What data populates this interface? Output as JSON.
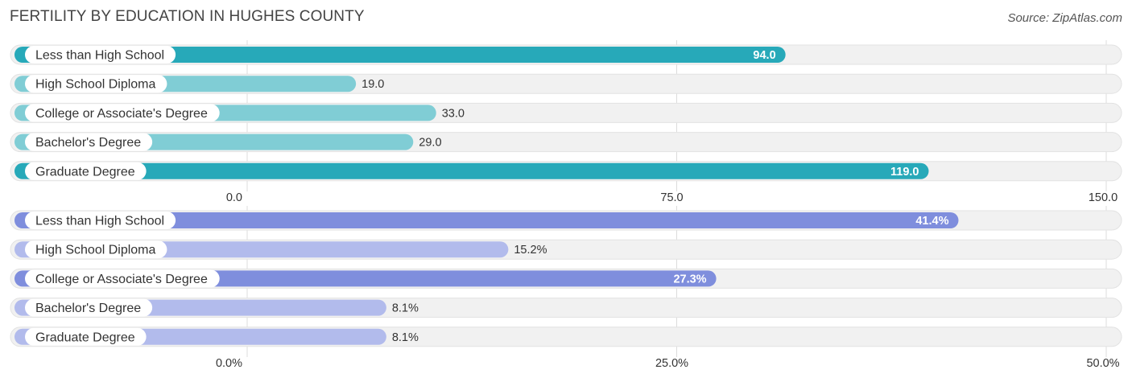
{
  "header": {
    "title": "FERTILITY BY EDUCATION IN HUGHES COUNTY",
    "source": "Source: ZipAtlas.com"
  },
  "chart_data": [
    {
      "type": "bar",
      "orientation": "horizontal",
      "categories": [
        "Less than High School",
        "High School Diploma",
        "College or Associate's Degree",
        "Bachelor's Degree",
        "Graduate Degree"
      ],
      "values": [
        94.0,
        19.0,
        33.0,
        29.0,
        119.0
      ],
      "value_labels": [
        "94.0",
        "19.0",
        "33.0",
        "29.0",
        "119.0"
      ],
      "xlim": [
        0,
        150
      ],
      "ticks": [
        0,
        75,
        150
      ],
      "tick_labels": [
        "0.0",
        "75.0",
        "150.0"
      ],
      "colors": {
        "strong": "#27a9b9",
        "light": "#80cdd5"
      }
    },
    {
      "type": "bar",
      "orientation": "horizontal",
      "categories": [
        "Less than High School",
        "High School Diploma",
        "College or Associate's Degree",
        "Bachelor's Degree",
        "Graduate Degree"
      ],
      "values": [
        41.4,
        15.2,
        27.3,
        8.1,
        8.1
      ],
      "value_labels": [
        "41.4%",
        "15.2%",
        "27.3%",
        "8.1%",
        "8.1%"
      ],
      "xlim": [
        0,
        50
      ],
      "ticks": [
        0,
        25,
        50
      ],
      "tick_labels": [
        "0.0%",
        "25.0%",
        "50.0%"
      ],
      "colors": {
        "strong": "#7f8edd",
        "light": "#b2bbec"
      }
    }
  ]
}
